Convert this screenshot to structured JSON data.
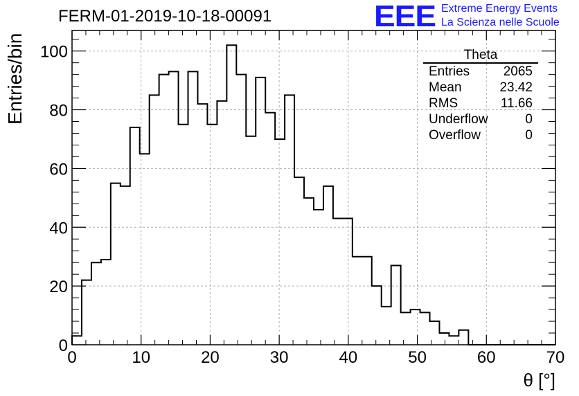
{
  "chart_data": {
    "type": "bar",
    "style": "step-histogram",
    "title": "FERM-01-2019-10-18-00091",
    "xlabel": "θ [°]",
    "ylabel": "Entries/bin",
    "xlim": [
      0,
      70
    ],
    "ylim": [
      0,
      107
    ],
    "grid": true,
    "bin_width": 1.4,
    "bin_edges_start": 0,
    "values": [
      3,
      22,
      28,
      29,
      55,
      54,
      74,
      65,
      85,
      92,
      93,
      75,
      93,
      82,
      75,
      83,
      102,
      92,
      71,
      91,
      79,
      70,
      85,
      57,
      50,
      46,
      54,
      43,
      43,
      30,
      30,
      20,
      13,
      27,
      11,
      12,
      11,
      8,
      4,
      3,
      5,
      0,
      0,
      0,
      0,
      0,
      0,
      0,
      0,
      0
    ],
    "x_ticks": [
      "0",
      "10",
      "20",
      "30",
      "40",
      "50",
      "60",
      "70"
    ],
    "y_ticks": [
      "0",
      "20",
      "40",
      "60",
      "80",
      "100"
    ]
  },
  "stats": {
    "title": "Theta",
    "rows": [
      {
        "label": "Entries",
        "value": "2065"
      },
      {
        "label": "Mean",
        "value": "23.42"
      },
      {
        "label": "RMS",
        "value": "11.66"
      },
      {
        "label": "Underflow",
        "value": "0"
      },
      {
        "label": "Overflow",
        "value": "0"
      }
    ]
  },
  "logo": {
    "mark": "EEE",
    "line1": "Extreme Energy Events",
    "line2": "La Scienza nelle Scuole"
  },
  "colors": {
    "histogram": "#000000",
    "grid": "#b0b0b0",
    "logo": "#1a1aff"
  }
}
